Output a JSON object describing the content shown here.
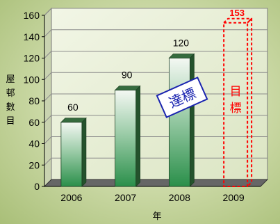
{
  "chart_data": {
    "type": "bar",
    "categories": [
      "2006",
      "2007",
      "2008",
      "2009"
    ],
    "values": [
      60,
      90,
      120,
      null
    ],
    "ylim": [
      0,
      160
    ],
    "yticks": [
      0,
      20,
      40,
      60,
      80,
      100,
      120,
      140,
      160
    ],
    "xlabel": "年",
    "ylabel": [
      "屋",
      "邨",
      "數",
      "目"
    ],
    "grid": true,
    "target": {
      "category": "2009",
      "value": 153,
      "label": [
        "目",
        "標"
      ],
      "color": "#ff0000"
    },
    "annotation": {
      "text": "達標",
      "color": "#1a24b0"
    }
  },
  "colors": {
    "bar_top": "#f4f8f3",
    "bar_bottom": "#2a8f4a",
    "bar_top_face": "#356b3e",
    "bar_side": "#24522c",
    "target": "#ff0000"
  }
}
